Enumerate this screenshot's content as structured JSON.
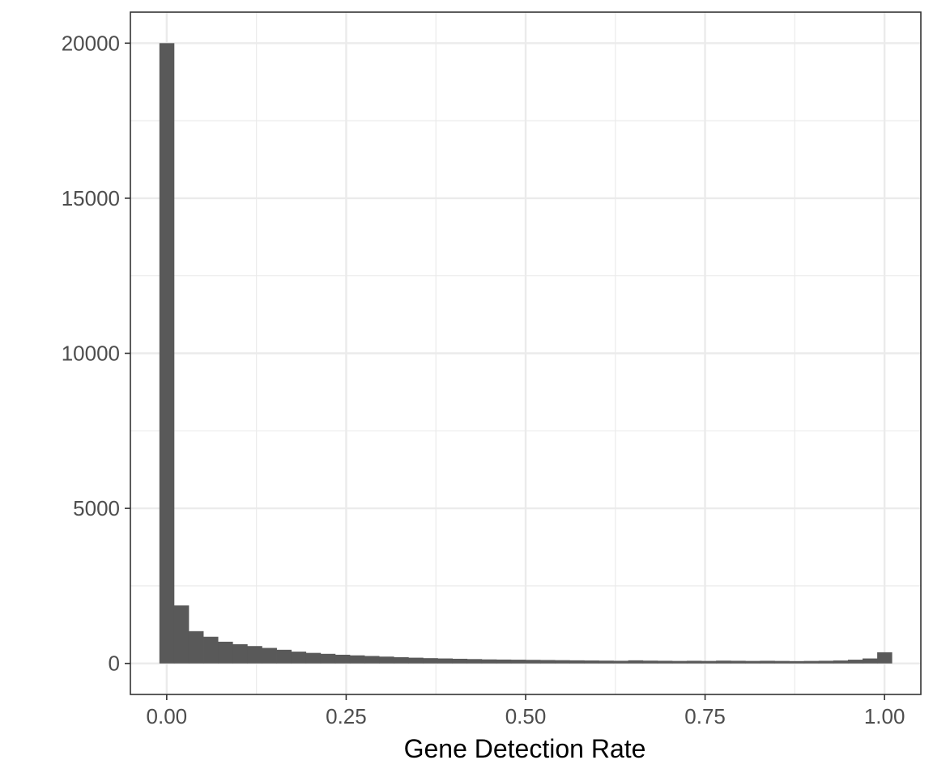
{
  "chart_data": {
    "type": "bar",
    "xlabel": "Gene Detection Rate",
    "ylabel": "",
    "xlim": [
      -0.0506,
      1.0506
    ],
    "ylim": [
      -1000,
      21000
    ],
    "x_ticks": [
      0.0,
      0.25,
      0.5,
      0.75,
      1.0
    ],
    "x_tick_labels": [
      "0.00",
      "0.25",
      "0.50",
      "0.75",
      "1.00"
    ],
    "y_ticks": [
      0,
      5000,
      10000,
      15000,
      20000
    ],
    "y_tick_labels": [
      "0",
      "5000",
      "10000",
      "15000",
      "20000"
    ],
    "grid": true,
    "bin_width": 0.0204,
    "bin_centers": [
      0.0,
      0.0204,
      0.0408,
      0.0612,
      0.0816,
      0.102,
      0.1224,
      0.1429,
      0.1633,
      0.1837,
      0.2041,
      0.2245,
      0.2449,
      0.2653,
      0.2857,
      0.3061,
      0.3265,
      0.3469,
      0.3673,
      0.3878,
      0.4082,
      0.4286,
      0.449,
      0.4694,
      0.4898,
      0.5102,
      0.5306,
      0.551,
      0.5714,
      0.5918,
      0.6122,
      0.6327,
      0.6531,
      0.6735,
      0.6939,
      0.7143,
      0.7347,
      0.7551,
      0.7755,
      0.7959,
      0.8163,
      0.8367,
      0.8571,
      0.8776,
      0.898,
      0.9184,
      0.9388,
      0.9592,
      0.9796,
      1.0
    ],
    "values": [
      20000,
      1870,
      1040,
      860,
      700,
      620,
      560,
      500,
      440,
      380,
      340,
      310,
      280,
      260,
      240,
      220,
      200,
      185,
      170,
      160,
      150,
      140,
      130,
      125,
      120,
      115,
      110,
      105,
      100,
      95,
      90,
      85,
      100,
      90,
      85,
      80,
      85,
      80,
      90,
      85,
      80,
      85,
      80,
      75,
      80,
      85,
      95,
      120,
      160,
      360
    ],
    "colors": {
      "bar": "#595959",
      "grid": "#ebebeb",
      "panel_border": "#333333",
      "tick": "#333333"
    }
  }
}
